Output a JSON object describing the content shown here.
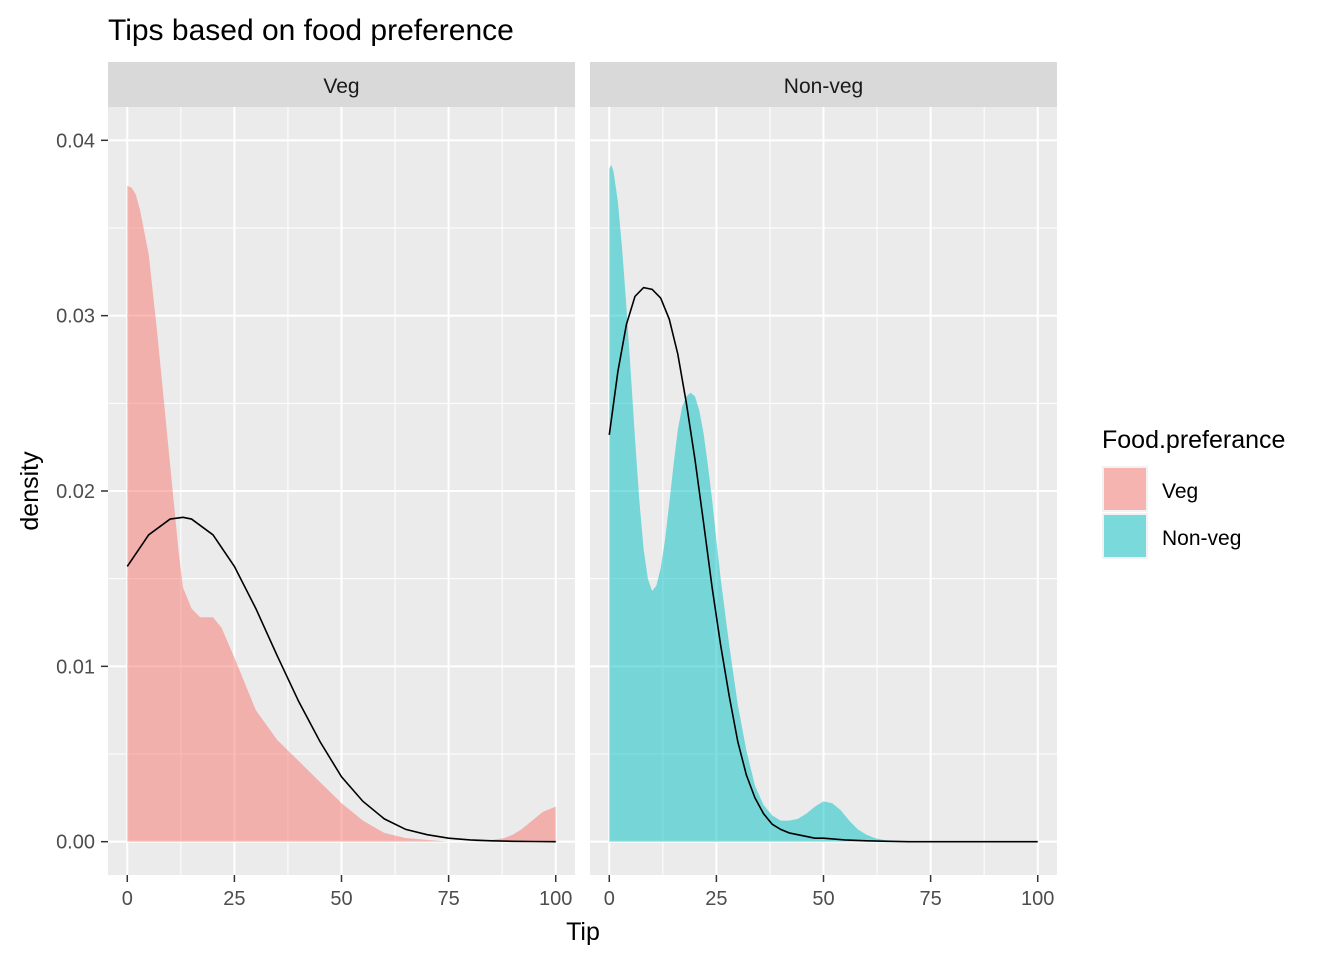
{
  "chart_data": {
    "type": "area",
    "title": "Tips based on food preference",
    "xlabel": "Tip",
    "ylabel": "density",
    "xlim": [
      -4.5,
      104.5
    ],
    "ylim": [
      -0.0019,
      0.0419
    ],
    "x_ticks": [
      0,
      25,
      50,
      75,
      100
    ],
    "x_tick_labels": [
      "0",
      "25",
      "50",
      "75",
      "100"
    ],
    "y_ticks": [
      0,
      0.01,
      0.02,
      0.03,
      0.04
    ],
    "y_tick_labels": [
      "0.00",
      "0.01",
      "0.02",
      "0.03",
      "0.04"
    ],
    "grid": true,
    "legend": {
      "title": "Food.preferance",
      "position": "right",
      "entries": [
        {
          "label": "Veg",
          "color": "#F8766D"
        },
        {
          "label": "Non-veg",
          "color": "#00BFC4"
        }
      ]
    },
    "fill_alpha": 0.5,
    "panels": [
      {
        "label": "Veg",
        "fill_color": "#F8766D",
        "density": {
          "x": [
            0,
            1,
            2,
            3,
            5,
            7,
            10,
            12,
            13,
            15,
            17,
            20,
            22,
            25,
            28,
            30,
            35,
            40,
            45,
            50,
            55,
            60,
            65,
            70,
            75,
            80,
            85,
            88,
            90,
            92,
            95,
            97,
            100
          ],
          "y": [
            0.0374,
            0.0373,
            0.0369,
            0.036,
            0.0335,
            0.029,
            0.0215,
            0.0165,
            0.0145,
            0.0133,
            0.0128,
            0.0128,
            0.0122,
            0.0105,
            0.0087,
            0.0075,
            0.0058,
            0.0046,
            0.0034,
            0.0022,
            0.0012,
            0.0005,
            0.0002,
            0.0001,
            0.0,
            0.0,
            0.0001,
            0.0002,
            0.0004,
            0.0007,
            0.0013,
            0.0017,
            0.002
          ]
        },
        "curve": {
          "x": [
            0,
            5,
            10,
            13,
            15,
            20,
            25,
            30,
            35,
            40,
            45,
            50,
            55,
            60,
            65,
            70,
            75,
            80,
            85,
            90,
            95,
            100
          ],
          "y": [
            0.0157,
            0.0175,
            0.0184,
            0.0185,
            0.0184,
            0.0175,
            0.0157,
            0.0133,
            0.0106,
            0.008,
            0.0057,
            0.0037,
            0.0023,
            0.0013,
            0.0007,
            0.0004,
            0.0002,
            0.0001,
            5e-05,
            2e-05,
            1e-05,
            0.0
          ]
        }
      },
      {
        "label": "Non-veg",
        "fill_color": "#00BFC4",
        "density": {
          "x": [
            0,
            0.5,
            1,
            2,
            3,
            4,
            5,
            6,
            7,
            8,
            9,
            10,
            11,
            12,
            13,
            14,
            15,
            16,
            17,
            18,
            19,
            20,
            21,
            22,
            23,
            24,
            25,
            26,
            28,
            30,
            32,
            34,
            36,
            38,
            40,
            42,
            44,
            46,
            48,
            50,
            52,
            54,
            56,
            58,
            60,
            62,
            64,
            70,
            80,
            90,
            100
          ],
          "y": [
            0.0384,
            0.0386,
            0.0382,
            0.0365,
            0.0338,
            0.0305,
            0.0268,
            0.023,
            0.0195,
            0.0167,
            0.015,
            0.0143,
            0.0146,
            0.0156,
            0.0172,
            0.0193,
            0.0215,
            0.0235,
            0.0248,
            0.0254,
            0.0256,
            0.0254,
            0.0246,
            0.0233,
            0.0215,
            0.0195,
            0.0172,
            0.015,
            0.0112,
            0.0078,
            0.0052,
            0.0032,
            0.0021,
            0.0015,
            0.0012,
            0.0012,
            0.0013,
            0.0016,
            0.002,
            0.0023,
            0.0022,
            0.0018,
            0.0012,
            0.0007,
            0.0004,
            0.0002,
            0.0001,
            0.0,
            0.0,
            0.0,
            0.0
          ]
        },
        "curve": {
          "x": [
            0,
            2,
            4,
            6,
            8,
            10,
            12,
            14,
            16,
            18,
            20,
            22,
            24,
            26,
            28,
            30,
            32,
            34,
            36,
            38,
            40,
            42,
            44,
            46,
            48,
            50,
            55,
            60,
            65,
            70,
            80,
            90,
            100
          ],
          "y": [
            0.0232,
            0.0268,
            0.0295,
            0.0311,
            0.0316,
            0.0315,
            0.031,
            0.0298,
            0.0278,
            0.025,
            0.0218,
            0.0182,
            0.0145,
            0.0112,
            0.0083,
            0.0057,
            0.0038,
            0.0025,
            0.0016,
            0.001,
            0.0007,
            0.0005,
            0.0004,
            0.0003,
            0.0002,
            0.0002,
            0.0001,
            5e-05,
            2e-05,
            0.0,
            0.0,
            0.0,
            0.0
          ]
        }
      }
    ]
  }
}
